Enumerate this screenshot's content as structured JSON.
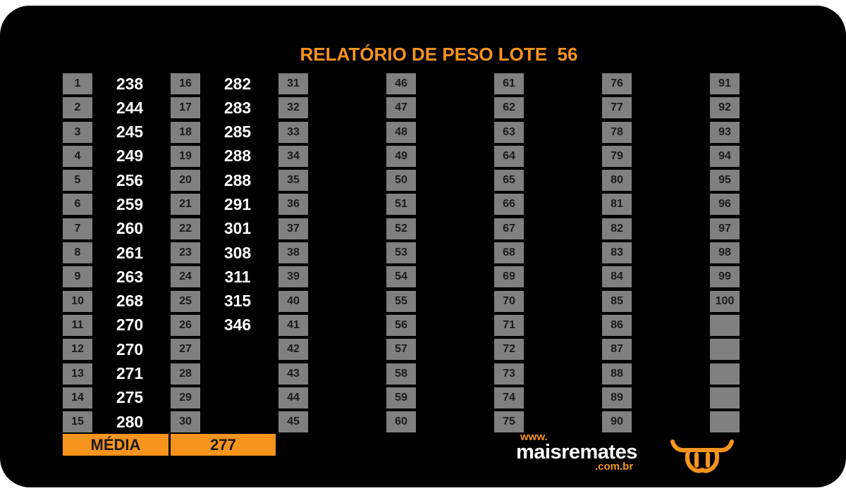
{
  "title": "RELATÓRIO DE PESO LOTE  56",
  "columns": [
    {
      "numbers": [
        "1",
        "2",
        "3",
        "4",
        "5",
        "6",
        "7",
        "8",
        "9",
        "10",
        "11",
        "12",
        "13",
        "14",
        "15"
      ],
      "weights": [
        "238",
        "244",
        "245",
        "249",
        "256",
        "259",
        "260",
        "261",
        "263",
        "268",
        "270",
        "270",
        "271",
        "275",
        "280"
      ]
    },
    {
      "numbers": [
        "16",
        "17",
        "18",
        "19",
        "20",
        "21",
        "22",
        "23",
        "24",
        "25",
        "26",
        "27",
        "28",
        "29",
        "30"
      ],
      "weights": [
        "282",
        "283",
        "285",
        "288",
        "288",
        "291",
        "301",
        "308",
        "311",
        "315",
        "346",
        "",
        "",
        "",
        ""
      ]
    },
    {
      "numbers": [
        "31",
        "32",
        "33",
        "34",
        "35",
        "36",
        "37",
        "38",
        "39",
        "40",
        "41",
        "42",
        "43",
        "44",
        "45"
      ],
      "weights": [
        "",
        "",
        "",
        "",
        "",
        "",
        "",
        "",
        "",
        "",
        "",
        "",
        "",
        "",
        ""
      ]
    },
    {
      "numbers": [
        "46",
        "47",
        "48",
        "49",
        "50",
        "51",
        "52",
        "53",
        "54",
        "55",
        "56",
        "57",
        "58",
        "59",
        "60"
      ],
      "weights": [
        "",
        "",
        "",
        "",
        "",
        "",
        "",
        "",
        "",
        "",
        "",
        "",
        "",
        "",
        ""
      ]
    },
    {
      "numbers": [
        "61",
        "62",
        "63",
        "64",
        "65",
        "66",
        "67",
        "68",
        "69",
        "70",
        "71",
        "72",
        "73",
        "74",
        "75"
      ],
      "weights": [
        "",
        "",
        "",
        "",
        "",
        "",
        "",
        "",
        "",
        "",
        "",
        "",
        "",
        "",
        ""
      ]
    },
    {
      "numbers": [
        "76",
        "77",
        "78",
        "79",
        "80",
        "81",
        "82",
        "83",
        "84",
        "85",
        "86",
        "87",
        "88",
        "89",
        "90"
      ],
      "weights": [
        "",
        "",
        "",
        "",
        "",
        "",
        "",
        "",
        "",
        "",
        "",
        "",
        "",
        "",
        ""
      ]
    },
    {
      "numbers": [
        "91",
        "92",
        "93",
        "94",
        "95",
        "96",
        "97",
        "98",
        "99",
        "100",
        "",
        "",
        "",
        "",
        ""
      ],
      "weights": [
        "",
        "",
        "",
        "",
        "",
        "",
        "",
        "",
        "",
        "",
        "",
        "",
        "",
        "",
        ""
      ]
    }
  ],
  "footer": {
    "media_label": "MÉDIA",
    "media_value": "277"
  },
  "logo": {
    "www": "www.",
    "name": "maisremates",
    "domain": ".com.br",
    "icon": "bull-head-icon"
  },
  "colors": {
    "background": "#000000",
    "accent": "#f7941d",
    "cell": "#808080",
    "text": "#ffffff"
  }
}
